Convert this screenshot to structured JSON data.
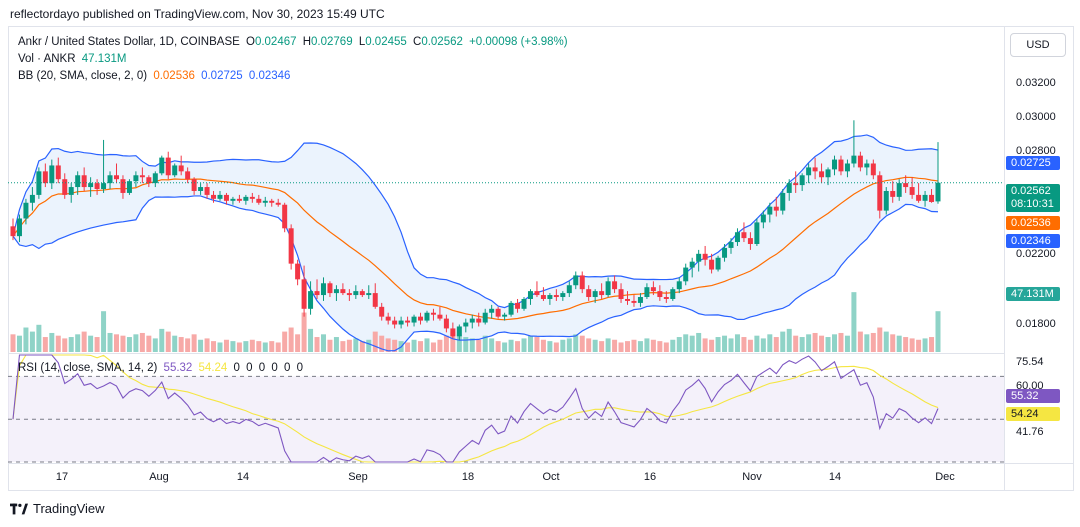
{
  "header": {
    "publisher_text": "reflectordayo published on TradingView.com, Nov 30, 2023 15:49 UTC"
  },
  "legend": {
    "symbol": "Ankr / United States Dollar, 1D, COINBASE",
    "o_label": "O",
    "o_value": "0.02467",
    "h_label": "H",
    "h_value": "0.02769",
    "l_label": "L",
    "l_value": "0.02455",
    "c_label": "C",
    "c_value": "0.02562",
    "change": "+0.00098 (+3.98%)",
    "vol_label": "Vol · ANKR",
    "vol_value": "47.131M",
    "bb_label": "BB (20, SMA, close, 2, 0)",
    "bb_basis": "0.02536",
    "bb_upper": "0.02725",
    "bb_lower": "0.02346",
    "rsi_label": "RSI (14, close, SMA, 14, 2)",
    "rsi_value": "55.32",
    "rsi_ma": "54.24",
    "rsi_extra": [
      "0",
      "0",
      "0",
      "0",
      "0",
      "0"
    ]
  },
  "currency_button": "USD",
  "price_axis": [
    "0.03200",
    "0.03000",
    "0.02800",
    "0.02200",
    "0.01800"
  ],
  "price_badges": {
    "upper": "0.02725",
    "last": "0.02562",
    "countdown": "08:10:31",
    "basis": "0.02536",
    "lower": "0.02346",
    "volume": "47.131M"
  },
  "rsi_axis": [
    "75.54",
    "60.00",
    "41.76"
  ],
  "rsi_badges": {
    "rsi": "55.32",
    "ma": "54.24"
  },
  "date_axis": [
    "17",
    "Aug",
    "14",
    "Sep",
    "18",
    "Oct",
    "16",
    "Nov",
    "14",
    "Dec"
  ],
  "brand": "TradingView",
  "colors": {
    "up": "#089981",
    "down": "#f23645",
    "vol_up": "#8fd3c7",
    "vol_down": "#f7a9a7",
    "bb_band": "#2962ff",
    "bb_basis": "#ff6d00",
    "bb_fill": "#e3eefc",
    "rsi_line": "#7e57c2",
    "rsi_ma": "#f5e642",
    "rsi_fill": "#ede7f6"
  },
  "chart_data": {
    "type": "candlestick",
    "title": "Ankr / United States Dollar, 1D, COINBASE",
    "ylim": [
      0.017,
      0.0335
    ],
    "candles": [
      [
        0.0234,
        0.0238,
        0.0227,
        0.0229
      ],
      [
        0.0229,
        0.024,
        0.0226,
        0.0238
      ],
      [
        0.0238,
        0.0248,
        0.0235,
        0.0246
      ],
      [
        0.0246,
        0.0254,
        0.0242,
        0.025
      ],
      [
        0.025,
        0.0264,
        0.0248,
        0.0262
      ],
      [
        0.0262,
        0.0266,
        0.0254,
        0.0256
      ],
      [
        0.0256,
        0.0268,
        0.0253,
        0.0265
      ],
      [
        0.0265,
        0.0269,
        0.0256,
        0.0258
      ],
      [
        0.0258,
        0.0261,
        0.0248,
        0.025
      ],
      [
        0.025,
        0.0256,
        0.0246,
        0.0254
      ],
      [
        0.0254,
        0.0262,
        0.025,
        0.026
      ],
      [
        0.026,
        0.0264,
        0.0252,
        0.0254
      ],
      [
        0.0254,
        0.0259,
        0.0249,
        0.0256
      ],
      [
        0.0256,
        0.0258,
        0.025,
        0.0253
      ],
      [
        0.0253,
        0.0278,
        0.0251,
        0.0256
      ],
      [
        0.0256,
        0.0262,
        0.0253,
        0.026
      ],
      [
        0.026,
        0.0266,
        0.0256,
        0.0258
      ],
      [
        0.0258,
        0.026,
        0.0248,
        0.0251
      ],
      [
        0.0251,
        0.0258,
        0.025,
        0.0257
      ],
      [
        0.0257,
        0.0262,
        0.0254,
        0.026
      ],
      [
        0.026,
        0.0264,
        0.0256,
        0.0259
      ],
      [
        0.0259,
        0.026,
        0.0254,
        0.0256
      ],
      [
        0.0256,
        0.0262,
        0.0254,
        0.0261
      ],
      [
        0.0261,
        0.027,
        0.026,
        0.0269
      ],
      [
        0.0269,
        0.0272,
        0.0258,
        0.026
      ],
      [
        0.026,
        0.0266,
        0.0259,
        0.0265
      ],
      [
        0.0265,
        0.027,
        0.026,
        0.0262
      ],
      [
        0.0262,
        0.0264,
        0.0256,
        0.0258
      ],
      [
        0.0258,
        0.0259,
        0.025,
        0.0252
      ],
      [
        0.0252,
        0.0256,
        0.025,
        0.0254
      ],
      [
        0.0254,
        0.0256,
        0.0248,
        0.025
      ],
      [
        0.025,
        0.0252,
        0.0246,
        0.0248
      ],
      [
        0.0248,
        0.0252,
        0.0247,
        0.025
      ],
      [
        0.025,
        0.0251,
        0.0245,
        0.0247
      ],
      [
        0.0247,
        0.0249,
        0.0245,
        0.0248
      ],
      [
        0.0248,
        0.025,
        0.0246,
        0.0247
      ],
      [
        0.0247,
        0.025,
        0.0245,
        0.0249
      ],
      [
        0.0249,
        0.0251,
        0.0246,
        0.0248
      ],
      [
        0.0248,
        0.025,
        0.0245,
        0.0246
      ],
      [
        0.0246,
        0.0249,
        0.0244,
        0.0247
      ],
      [
        0.0247,
        0.0248,
        0.0244,
        0.0246
      ],
      [
        0.0246,
        0.0248,
        0.0244,
        0.0245
      ],
      [
        0.0245,
        0.0246,
        0.0231,
        0.0233
      ],
      [
        0.0233,
        0.0235,
        0.0212,
        0.0215
      ],
      [
        0.0215,
        0.0217,
        0.0204,
        0.0207
      ],
      [
        0.0207,
        0.0214,
        0.0188,
        0.0192
      ],
      [
        0.0192,
        0.0206,
        0.0189,
        0.0201
      ],
      [
        0.0201,
        0.0207,
        0.0197,
        0.0199
      ],
      [
        0.0199,
        0.0208,
        0.0196,
        0.0205
      ],
      [
        0.0205,
        0.0206,
        0.0198,
        0.02
      ],
      [
        0.02,
        0.0204,
        0.0196,
        0.0202
      ],
      [
        0.0202,
        0.0205,
        0.0199,
        0.02
      ],
      [
        0.02,
        0.0202,
        0.0196,
        0.0199
      ],
      [
        0.0199,
        0.0204,
        0.0197,
        0.0201
      ],
      [
        0.0201,
        0.0202,
        0.0198,
        0.0199
      ],
      [
        0.0199,
        0.0204,
        0.0197,
        0.02
      ],
      [
        0.02,
        0.0205,
        0.0192,
        0.0193
      ],
      [
        0.0193,
        0.0195,
        0.0186,
        0.0188
      ],
      [
        0.0188,
        0.019,
        0.0184,
        0.0186
      ],
      [
        0.0186,
        0.0188,
        0.0182,
        0.0184
      ],
      [
        0.0184,
        0.0188,
        0.0182,
        0.0186
      ],
      [
        0.0186,
        0.0188,
        0.0183,
        0.0185
      ],
      [
        0.0185,
        0.0189,
        0.0183,
        0.0188
      ],
      [
        0.0188,
        0.019,
        0.0184,
        0.0186
      ],
      [
        0.0186,
        0.0191,
        0.0185,
        0.019
      ],
      [
        0.019,
        0.0192,
        0.0186,
        0.0189
      ],
      [
        0.0189,
        0.0193,
        0.0186,
        0.0187
      ],
      [
        0.0187,
        0.0189,
        0.018,
        0.0182
      ],
      [
        0.0182,
        0.0185,
        0.0177,
        0.0178
      ],
      [
        0.0178,
        0.0184,
        0.0176,
        0.0183
      ],
      [
        0.0183,
        0.0187,
        0.018,
        0.0185
      ],
      [
        0.0185,
        0.0189,
        0.0182,
        0.0187
      ],
      [
        0.0187,
        0.019,
        0.0183,
        0.0185
      ],
      [
        0.0185,
        0.0192,
        0.0184,
        0.019
      ],
      [
        0.019,
        0.0194,
        0.0187,
        0.0192
      ],
      [
        0.0192,
        0.0193,
        0.0187,
        0.0188
      ],
      [
        0.0188,
        0.019,
        0.0186,
        0.0189
      ],
      [
        0.0189,
        0.0196,
        0.0188,
        0.0195
      ],
      [
        0.0195,
        0.0197,
        0.019,
        0.0192
      ],
      [
        0.0192,
        0.0198,
        0.0191,
        0.0197
      ],
      [
        0.0197,
        0.0202,
        0.0194,
        0.0201
      ],
      [
        0.0201,
        0.0206,
        0.0198,
        0.0199
      ],
      [
        0.0199,
        0.0203,
        0.0196,
        0.0197
      ],
      [
        0.0197,
        0.02,
        0.0194,
        0.0199
      ],
      [
        0.0199,
        0.0202,
        0.0196,
        0.0198
      ],
      [
        0.0198,
        0.0201,
        0.0196,
        0.02
      ],
      [
        0.02,
        0.0206,
        0.0198,
        0.0204
      ],
      [
        0.0204,
        0.0211,
        0.0202,
        0.0209
      ],
      [
        0.0209,
        0.0211,
        0.02,
        0.0202
      ],
      [
        0.0202,
        0.0204,
        0.0196,
        0.0198
      ],
      [
        0.0198,
        0.0202,
        0.0195,
        0.0201
      ],
      [
        0.0201,
        0.0205,
        0.0197,
        0.0199
      ],
      [
        0.0199,
        0.0208,
        0.0198,
        0.0206
      ],
      [
        0.0206,
        0.0209,
        0.02,
        0.0202
      ],
      [
        0.0202,
        0.0205,
        0.0195,
        0.0197
      ],
      [
        0.0197,
        0.0201,
        0.0194,
        0.0196
      ],
      [
        0.0196,
        0.0199,
        0.0193,
        0.0195
      ],
      [
        0.0195,
        0.02,
        0.0193,
        0.0198
      ],
      [
        0.0198,
        0.0205,
        0.0197,
        0.0203
      ],
      [
        0.0203,
        0.0206,
        0.0199,
        0.0201
      ],
      [
        0.0201,
        0.0204,
        0.0196,
        0.0198
      ],
      [
        0.0198,
        0.0201,
        0.0195,
        0.0197
      ],
      [
        0.0197,
        0.0203,
        0.0196,
        0.0202
      ],
      [
        0.0202,
        0.0208,
        0.02,
        0.0206
      ],
      [
        0.0206,
        0.0215,
        0.0204,
        0.0213
      ],
      [
        0.0213,
        0.0218,
        0.0208,
        0.0216
      ],
      [
        0.0216,
        0.0222,
        0.0211,
        0.022
      ],
      [
        0.022,
        0.0224,
        0.0214,
        0.0217
      ],
      [
        0.0217,
        0.022,
        0.021,
        0.0212
      ],
      [
        0.0212,
        0.0219,
        0.0211,
        0.0218
      ],
      [
        0.0218,
        0.0225,
        0.0216,
        0.0223
      ],
      [
        0.0223,
        0.0228,
        0.022,
        0.0226
      ],
      [
        0.0226,
        0.0233,
        0.0224,
        0.0231
      ],
      [
        0.0231,
        0.0236,
        0.0226,
        0.0228
      ],
      [
        0.0228,
        0.0231,
        0.0222,
        0.0225
      ],
      [
        0.0225,
        0.0238,
        0.0224,
        0.0236
      ],
      [
        0.0236,
        0.0242,
        0.0233,
        0.024
      ],
      [
        0.024,
        0.0246,
        0.0236,
        0.0244
      ],
      [
        0.0244,
        0.0249,
        0.0239,
        0.0242
      ],
      [
        0.0242,
        0.0253,
        0.024,
        0.0251
      ],
      [
        0.0251,
        0.0258,
        0.0247,
        0.0256
      ],
      [
        0.0256,
        0.0262,
        0.0251,
        0.0255
      ],
      [
        0.0255,
        0.0261,
        0.0252,
        0.026
      ],
      [
        0.026,
        0.0266,
        0.0256,
        0.0264
      ],
      [
        0.0264,
        0.0269,
        0.0258,
        0.0262
      ],
      [
        0.0262,
        0.0266,
        0.0256,
        0.0259
      ],
      [
        0.0259,
        0.0264,
        0.0255,
        0.0263
      ],
      [
        0.0263,
        0.027,
        0.026,
        0.0268
      ],
      [
        0.0268,
        0.027,
        0.026,
        0.0262
      ],
      [
        0.0262,
        0.0268,
        0.0259,
        0.0266
      ],
      [
        0.0266,
        0.0288,
        0.0264,
        0.027
      ],
      [
        0.027,
        0.0272,
        0.0262,
        0.0264
      ],
      [
        0.0264,
        0.0268,
        0.026,
        0.0266
      ],
      [
        0.0266,
        0.0268,
        0.0258,
        0.026
      ],
      [
        0.026,
        0.0262,
        0.0238,
        0.0242
      ],
      [
        0.0242,
        0.0254,
        0.024,
        0.0252
      ],
      [
        0.0252,
        0.0257,
        0.0246,
        0.0249
      ],
      [
        0.0249,
        0.0258,
        0.0247,
        0.0256
      ],
      [
        0.0256,
        0.026,
        0.0251,
        0.0254
      ],
      [
        0.0254,
        0.0259,
        0.0248,
        0.025
      ],
      [
        0.025,
        0.0256,
        0.0246,
        0.0247
      ],
      [
        0.0247,
        0.0252,
        0.0244,
        0.025
      ],
      [
        0.025,
        0.0253,
        0.0246,
        0.02464
      ],
      [
        0.02467,
        0.02769,
        0.02455,
        0.02562
      ]
    ],
    "volume": [
      26,
      24,
      36,
      30,
      40,
      22,
      28,
      24,
      20,
      22,
      26,
      30,
      24,
      22,
      60,
      28,
      26,
      24,
      22,
      26,
      28,
      24,
      20,
      34,
      30,
      24,
      22,
      20,
      26,
      18,
      20,
      16,
      14,
      18,
      16,
      14,
      16,
      18,
      16,
      14,
      16,
      14,
      30,
      36,
      26,
      58,
      34,
      22,
      26,
      18,
      22,
      16,
      18,
      20,
      16,
      18,
      30,
      24,
      20,
      18,
      16,
      14,
      18,
      16,
      20,
      14,
      18,
      24,
      30,
      26,
      22,
      20,
      18,
      24,
      20,
      16,
      14,
      18,
      16,
      20,
      24,
      22,
      18,
      16,
      14,
      18,
      20,
      26,
      24,
      20,
      18,
      16,
      20,
      18,
      14,
      16,
      18,
      16,
      20,
      18,
      16,
      14,
      18,
      22,
      26,
      24,
      28,
      20,
      18,
      22,
      24,
      20,
      26,
      22,
      18,
      24,
      20,
      26,
      22,
      30,
      34,
      24,
      22,
      26,
      28,
      24,
      22,
      26,
      28,
      24,
      88,
      30,
      26,
      28,
      36,
      30,
      26,
      24,
      22,
      20,
      18,
      20,
      22,
      60
    ],
    "volume_unit": "M",
    "rsi_axis_range": [
      30,
      80
    ]
  }
}
